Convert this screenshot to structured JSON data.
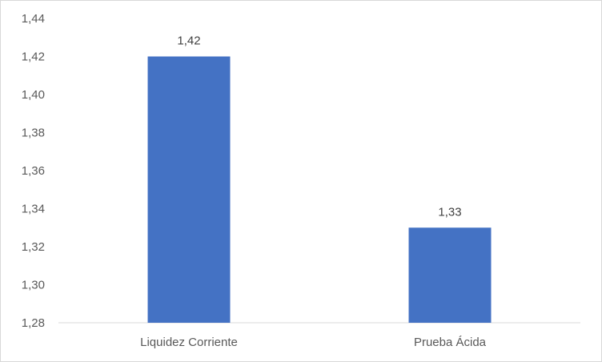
{
  "chart_data": {
    "type": "bar",
    "title": "",
    "xlabel": "",
    "ylabel": "",
    "categories": [
      "Liquidez Corriente",
      "Prueba Ácida"
    ],
    "values": [
      1.42,
      1.33
    ],
    "data_labels": [
      "1,42",
      "1,33"
    ],
    "ylim": [
      1.28,
      1.44
    ],
    "yticks": [
      1.28,
      1.3,
      1.32,
      1.34,
      1.36,
      1.38,
      1.4,
      1.42,
      1.44
    ],
    "ytick_labels": [
      "1,28",
      "1,30",
      "1,32",
      "1,34",
      "1,36",
      "1,38",
      "1,40",
      "1,42",
      "1,44"
    ],
    "grid": false,
    "legend": "none",
    "colors": {
      "bar": "#4472c4",
      "axis": "#d9d9d9"
    }
  }
}
